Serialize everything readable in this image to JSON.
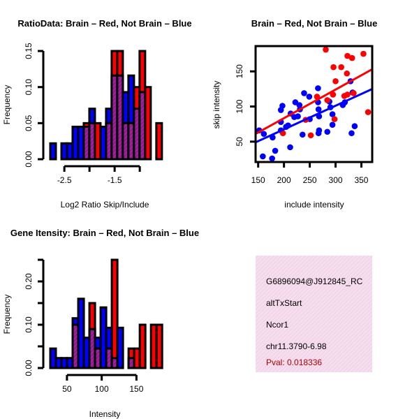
{
  "colors": {
    "blue": "#0000ff",
    "red": "#ff0000",
    "overlap": "#a020a0",
    "pval": "#b00000",
    "info_bg": "#f6d8ee"
  },
  "chart_data": [
    {
      "type": "bar",
      "title": "RatioData: Brain – Red, Not Brain – Blue",
      "xlabel": "Log2 Ratio Skip/Include",
      "ylabel": "Frequency",
      "bin_start": -2.78,
      "bin_width": 0.111,
      "xticks": [
        -2.5,
        -2.0,
        -1.5,
        -1.0
      ],
      "xtick_labels": [
        "-2.5",
        "",
        "-1.5",
        ""
      ],
      "yticks": [
        0,
        0.05,
        0.1,
        0.15
      ],
      "ytick_labels": [
        "0.00",
        "0.05",
        "0.10",
        "0.15"
      ],
      "ylim": [
        0,
        0.15
      ],
      "series": [
        {
          "name": "Not Brain",
          "color": "blue",
          "values": [
            0.022,
            0,
            0.022,
            0.022,
            0.045,
            0.045,
            0.045,
            0.07,
            0,
            0.045,
            0.07,
            0.116,
            0.116,
            0.093,
            0.116,
            0.07,
            0.093,
            0,
            0,
            0
          ]
        },
        {
          "name": "Brain",
          "color": "red",
          "values": [
            0,
            0,
            0,
            0,
            0,
            0,
            0.05,
            0.05,
            0.05,
            0,
            0.05,
            0.15,
            0.15,
            0.05,
            0.05,
            0.1,
            0.15,
            0.1,
            0,
            0.05
          ]
        }
      ]
    },
    {
      "type": "scatter",
      "title": "Brain – Red, Not Brain – Blue",
      "xlabel": "include intensity",
      "ylabel": "skip intensity",
      "xlim": [
        145,
        371
      ],
      "ylim": [
        21,
        186
      ],
      "xticks": [
        150,
        200,
        250,
        300,
        350
      ],
      "xtick_labels": [
        "150",
        "200",
        "250",
        "300",
        "350"
      ],
      "yticks": [
        50,
        100,
        150
      ],
      "ytick_labels": [
        "50",
        "100",
        "150"
      ],
      "series": [
        {
          "name": "Not Brain",
          "color": "blue",
          "fit": {
            "slope": 0.336,
            "intercept": 0.3
          },
          "points": [
            [
              152,
              66
            ],
            [
              161,
              61
            ],
            [
              159,
              29
            ],
            [
              177,
              26
            ],
            [
              183,
              37
            ],
            [
              178,
              56
            ],
            [
              194,
              66
            ],
            [
              194,
              78
            ],
            [
              194,
              95
            ],
            [
              197,
              101
            ],
            [
              204,
              71
            ],
            [
              208,
              73
            ],
            [
              212,
              42
            ],
            [
              213,
              90
            ],
            [
              220,
              85
            ],
            [
              222,
              106
            ],
            [
              227,
              86
            ],
            [
              230,
              102
            ],
            [
              231,
              96
            ],
            [
              236,
              60
            ],
            [
              239,
              119
            ],
            [
              249,
              114
            ],
            [
              250,
              82
            ],
            [
              266,
              126
            ],
            [
              266,
              106
            ],
            [
              267,
              96
            ],
            [
              268,
              86
            ],
            [
              268,
              66
            ],
            [
              267,
              62
            ],
            [
              284,
              64
            ],
            [
              288,
              107
            ],
            [
              290,
              99
            ],
            [
              294,
              89
            ],
            [
              294,
              74
            ],
            [
              314,
              102
            ],
            [
              318,
              106
            ],
            [
              329,
              136
            ],
            [
              333,
              120
            ],
            [
              337,
              72
            ],
            [
              331,
              62
            ]
          ]
        },
        {
          "name": "Brain",
          "color": "red",
          "fit": {
            "slope": 0.407,
            "intercept": 2
          },
          "points": [
            [
              281,
              181
            ],
            [
              323,
              172
            ],
            [
              332,
              169
            ],
            [
              354,
              175
            ],
            [
              296,
              156
            ],
            [
              311,
              156
            ],
            [
              322,
              147
            ],
            [
              300,
              136
            ],
            [
              295,
              117
            ],
            [
              317,
              115
            ],
            [
              323,
              117
            ],
            [
              335,
              119
            ],
            [
              264,
              114
            ],
            [
              284,
              109
            ],
            [
              298,
              82
            ],
            [
              242,
              81
            ],
            [
              198,
              62
            ],
            [
              252,
              59
            ],
            [
              363,
              92
            ]
          ]
        }
      ]
    },
    {
      "type": "bar",
      "title": "Gene Itensity: Brain – Red, Not Brain – Blue",
      "xlabel": "Intensity",
      "ylabel": "Frequency",
      "bin_start": 26,
      "bin_width": 8.05,
      "xticks": [
        50,
        100,
        150
      ],
      "xtick_labels": [
        "50",
        "100",
        "150"
      ],
      "yticks": [
        0,
        0.05,
        0.1,
        0.15,
        0.2,
        0.25
      ],
      "ytick_labels": [
        "0.00",
        "",
        "0.10",
        "",
        "0.20",
        ""
      ],
      "ylim": [
        0,
        0.25
      ],
      "series": [
        {
          "name": "Not Brain",
          "color": "blue",
          "values": [
            0.045,
            0.023,
            0.023,
            0.023,
            0.115,
            0.16,
            0.07,
            0.09,
            0.07,
            0.14,
            0.093,
            0.023,
            0.093,
            0,
            0.023,
            0,
            0,
            0,
            0,
            0
          ]
        },
        {
          "name": "Brain",
          "color": "red",
          "values": [
            0,
            0,
            0,
            0,
            0.1,
            0,
            0,
            0.15,
            0.045,
            0,
            0.045,
            0.25,
            0,
            0,
            0.045,
            0.045,
            0.1,
            0,
            0.1,
            0.1
          ]
        }
      ]
    }
  ],
  "info": {
    "id": "G6896094@J912845_RC",
    "event_type": "altTxStart",
    "gene": "Ncor1",
    "location": "chr11.3790-6.98",
    "pval": "Pval: 0.018336"
  }
}
